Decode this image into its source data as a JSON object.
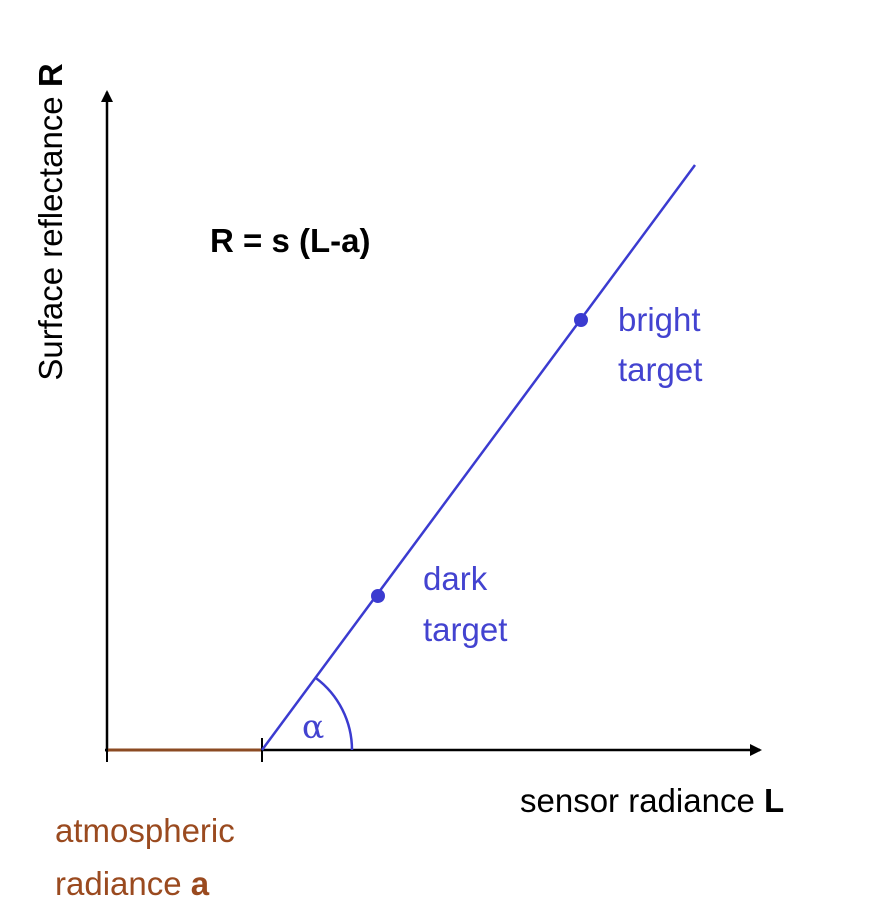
{
  "equation": "R = s (L-a)",
  "y_axis": {
    "label": "Surface reflectance",
    "symbol": "R"
  },
  "x_axis": {
    "label": "sensor radiance",
    "symbol": "L"
  },
  "bright_target": [
    "bright",
    "target"
  ],
  "dark_target": [
    "dark",
    "target"
  ],
  "angle": "α",
  "offset": {
    "lines": [
      "atmospheric",
      "radiance"
    ],
    "symbol": "a"
  }
}
